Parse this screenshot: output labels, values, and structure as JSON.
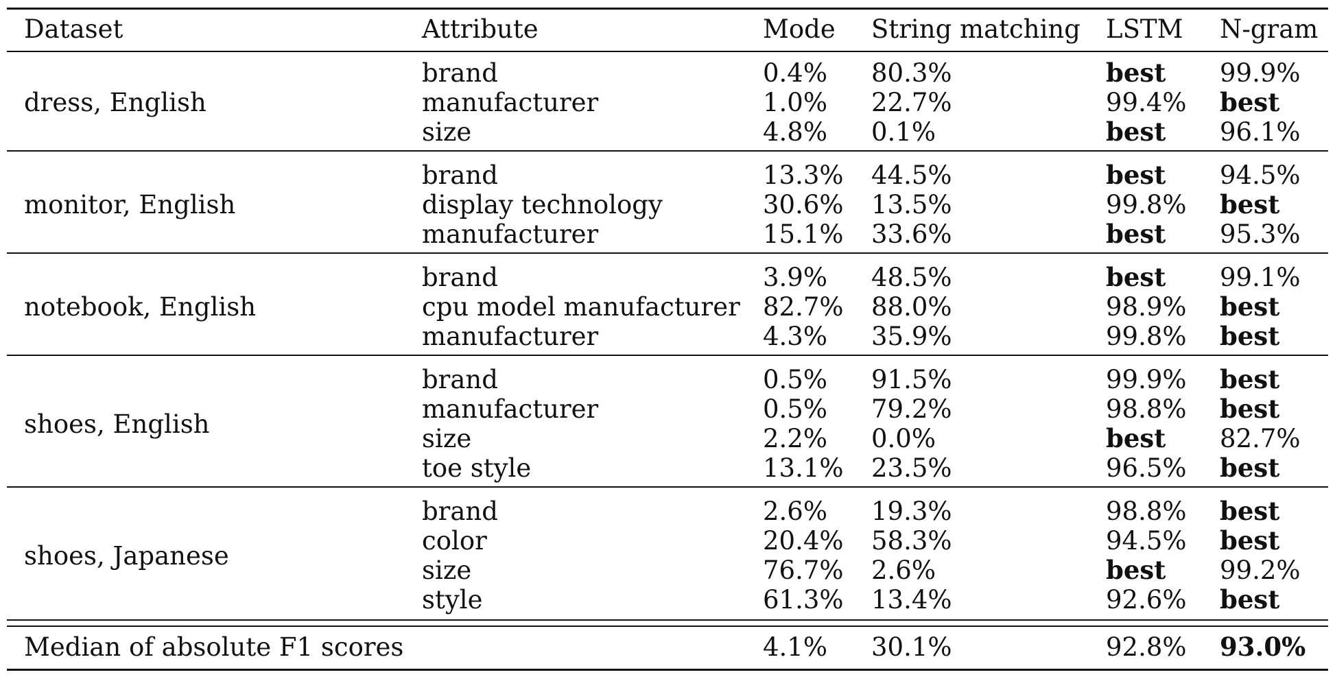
{
  "table": {
    "headers": [
      "Dataset",
      "Attribute",
      "Mode",
      "String matching",
      "LSTM",
      "N-gram"
    ],
    "groups": [
      {
        "dataset": "dress, English",
        "rows": [
          {
            "attribute": "brand",
            "mode": "0.4%",
            "string_matching": "80.3%",
            "lstm": "best",
            "ngram": "99.9%"
          },
          {
            "attribute": "manufacturer",
            "mode": "1.0%",
            "string_matching": "22.7%",
            "lstm": "99.4%",
            "ngram": "best"
          },
          {
            "attribute": "size",
            "mode": "4.8%",
            "string_matching": "0.1%",
            "lstm": "best",
            "ngram": "96.1%"
          }
        ]
      },
      {
        "dataset": "monitor, English",
        "rows": [
          {
            "attribute": "brand",
            "mode": "13.3%",
            "string_matching": "44.5%",
            "lstm": "best",
            "ngram": "94.5%"
          },
          {
            "attribute": "display technology",
            "mode": "30.6%",
            "string_matching": "13.5%",
            "lstm": "99.8%",
            "ngram": "best"
          },
          {
            "attribute": "manufacturer",
            "mode": "15.1%",
            "string_matching": "33.6%",
            "lstm": "best",
            "ngram": "95.3%"
          }
        ]
      },
      {
        "dataset": "notebook, English",
        "rows": [
          {
            "attribute": "brand",
            "mode": "3.9%",
            "string_matching": "48.5%",
            "lstm": "best",
            "ngram": "99.1%"
          },
          {
            "attribute": "cpu model manufacturer",
            "mode": "82.7%",
            "string_matching": "88.0%",
            "lstm": "98.9%",
            "ngram": "best"
          },
          {
            "attribute": "manufacturer",
            "mode": "4.3%",
            "string_matching": "35.9%",
            "lstm": "99.8%",
            "ngram": "best"
          }
        ]
      },
      {
        "dataset": "shoes, English",
        "rows": [
          {
            "attribute": "brand",
            "mode": "0.5%",
            "string_matching": "91.5%",
            "lstm": "99.9%",
            "ngram": "best"
          },
          {
            "attribute": "manufacturer",
            "mode": "0.5%",
            "string_matching": "79.2%",
            "lstm": "98.8%",
            "ngram": "best"
          },
          {
            "attribute": "size",
            "mode": "2.2%",
            "string_matching": "0.0%",
            "lstm": "best",
            "ngram": "82.7%"
          },
          {
            "attribute": "toe style",
            "mode": "13.1%",
            "string_matching": "23.5%",
            "lstm": "96.5%",
            "ngram": "best"
          }
        ]
      },
      {
        "dataset": "shoes, Japanese",
        "rows": [
          {
            "attribute": "brand",
            "mode": "2.6%",
            "string_matching": "19.3%",
            "lstm": "98.8%",
            "ngram": "best"
          },
          {
            "attribute": "color",
            "mode": "20.4%",
            "string_matching": "58.3%",
            "lstm": "94.5%",
            "ngram": "best"
          },
          {
            "attribute": "size",
            "mode": "76.7%",
            "string_matching": "2.6%",
            "lstm": "best",
            "ngram": "99.2%"
          },
          {
            "attribute": "style",
            "mode": "61.3%",
            "string_matching": "13.4%",
            "lstm": "92.6%",
            "ngram": "best"
          }
        ]
      }
    ],
    "median": {
      "label": "Median of absolute F1 scores",
      "mode": "4.1%",
      "string_matching": "30.1%",
      "lstm": "92.8%",
      "ngram": "93.0%",
      "ngram_bold": true
    }
  }
}
